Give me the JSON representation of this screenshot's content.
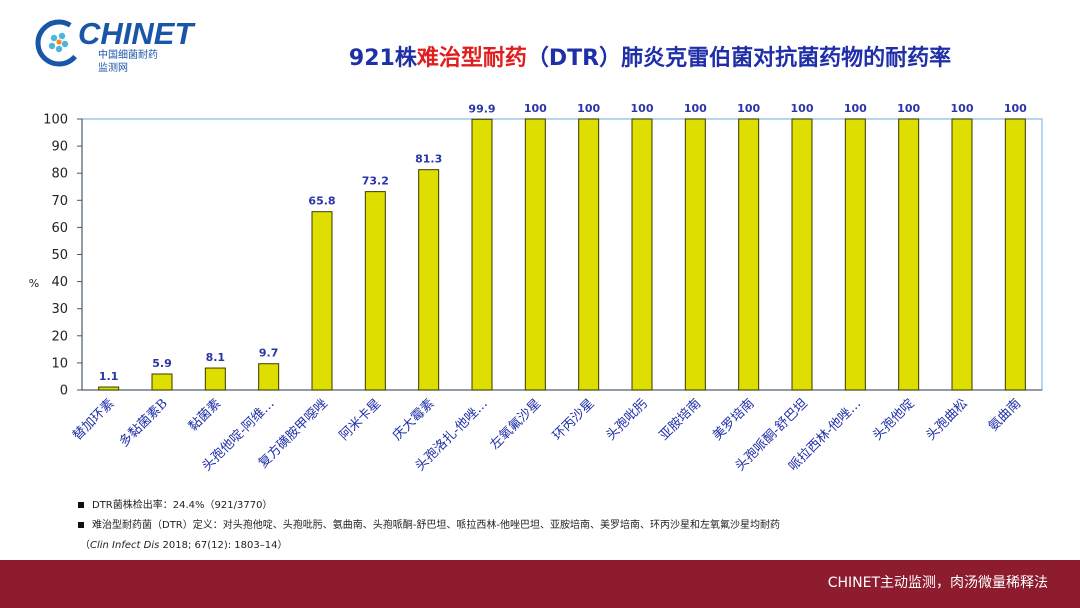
{
  "logo": {
    "brand": "CHINET",
    "subtitle_line1": "中国细菌耐药",
    "subtitle_line2": "监测网",
    "globe_color": "#1a56a8",
    "accent_color": "#4fb3e0"
  },
  "title": {
    "part1": "921株",
    "part2": "难治型耐药",
    "part3": "（DTR）肺炎克雷伯菌对抗菌药物的耐药率",
    "color_main": "#1f2fa8",
    "color_highlight": "#e01e1e"
  },
  "chart_data": {
    "type": "bar",
    "ylabel": "%",
    "ylim": [
      0,
      100
    ],
    "yticks": [
      0,
      10,
      20,
      30,
      40,
      50,
      60,
      70,
      80,
      90,
      100
    ],
    "grid": false,
    "categories": [
      "替加环素",
      "多黏菌素B",
      "黏菌素",
      "头孢他啶-阿维…",
      "复方磺胺甲噁唑",
      "阿米卡星",
      "庆大霉素",
      "头孢洛扎-他唑…",
      "左氧氟沙星",
      "环丙沙星",
      "头孢吡肟",
      "亚胺培南",
      "美罗培南",
      "头孢哌酮-舒巴坦",
      "哌拉西林-他唑…",
      "头孢他啶",
      "头孢曲松",
      "氨曲南"
    ],
    "values": [
      1.1,
      5.9,
      8.1,
      9.7,
      65.8,
      73.2,
      81.3,
      99.9,
      100,
      100,
      100,
      100,
      100,
      100,
      100,
      100,
      100,
      100
    ],
    "value_labels": [
      "1.1",
      "5.9",
      "8.1",
      "9.7",
      "65.8",
      "73.2",
      "81.3",
      "99.9",
      "100",
      "100",
      "100",
      "100",
      "100",
      "100",
      "100",
      "100",
      "100",
      "100"
    ],
    "bar_color": "#dede00",
    "bar_edge_color": "#3a3a00",
    "label_color": "#2a35a8",
    "plot_border_color": "#9cc9ea"
  },
  "notes": {
    "line1": "DTR菌株检出率：24.4%（921/3770）",
    "line2": "难治型耐药菌（DTR）定义：对头孢他啶、头孢吡肟、氨曲南、头孢哌酮-舒巴坦、哌拉西林-他唑巴坦、亚胺培南、美罗培南、环丙沙星和左氧氟沙星均耐药",
    "ref_journal": "Clin Infect Dis",
    "ref_rest": " 2018; 67(12): 1803–14）",
    "ref_open": "（"
  },
  "footer": {
    "text": "CHINET主动监测，肉汤微量稀释法",
    "bg_color": "#8e1c2f"
  }
}
